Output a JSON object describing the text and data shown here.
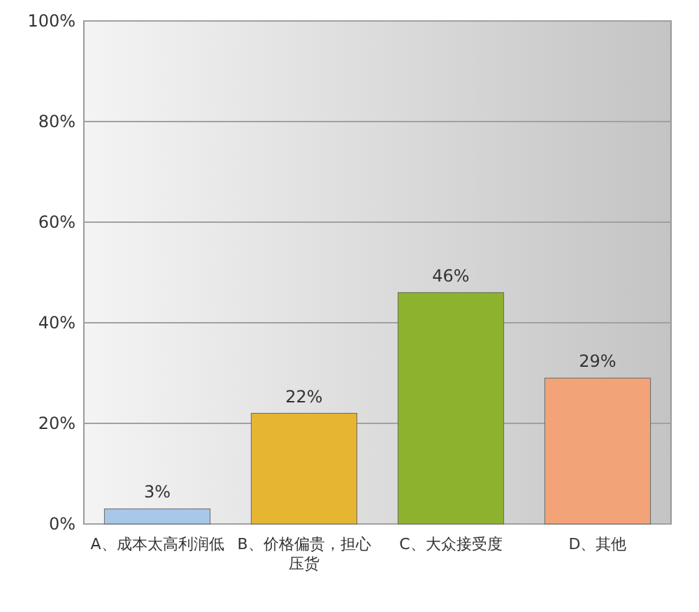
{
  "chart_data": {
    "type": "bar",
    "categories": [
      "A、成本太高利润低",
      "B、价格偏贵，担心压货",
      "C、大众接受度",
      "D、其他"
    ],
    "values": [
      3,
      22,
      46,
      29
    ],
    "colors": [
      "#a8c8ea",
      "#e6b632",
      "#8db32e",
      "#f2a478"
    ],
    "value_labels": [
      "3%",
      "22%",
      "46%",
      "29%"
    ],
    "ylim": [
      0,
      100
    ],
    "yticks": [
      {
        "value": 0,
        "label": "0%"
      },
      {
        "value": 20,
        "label": "20%"
      },
      {
        "value": 40,
        "label": "40%"
      },
      {
        "value": 60,
        "label": "60%"
      },
      {
        "value": 80,
        "label": "80%"
      },
      {
        "value": 100,
        "label": "100%"
      }
    ],
    "grid": "y"
  }
}
